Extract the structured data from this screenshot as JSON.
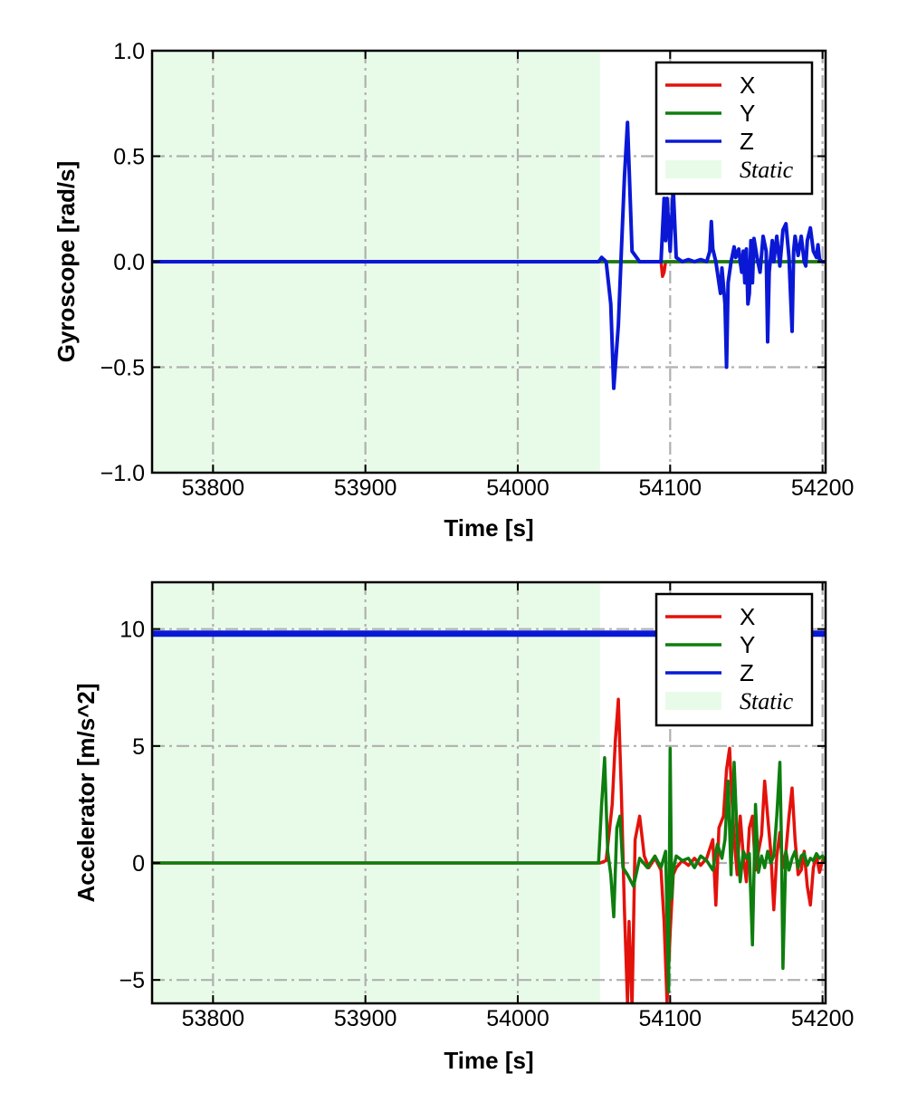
{
  "chart_data": [
    {
      "type": "line",
      "xlabel": "Time [s]",
      "ylabel": "Gyroscope [rad/s]",
      "xlim": [
        53760,
        54202
      ],
      "ylim": [
        -1.0,
        1.0
      ],
      "xticks": [
        53800,
        53900,
        54000,
        54100,
        54200
      ],
      "xtick_labels": [
        "53800",
        "53900",
        "54000",
        "54100",
        "54200"
      ],
      "yticks": [
        -1.0,
        -0.5,
        0.0,
        0.5,
        1.0
      ],
      "ytick_labels": [
        "−1.0",
        "−0.5",
        "0.0",
        "0.5",
        "1.0"
      ],
      "grid": true,
      "legend_position": "top-right",
      "static_region": {
        "label": "Static",
        "x": [
          53760,
          54054
        ],
        "color": "#e8fbe8"
      },
      "series": [
        {
          "name": "X",
          "color": "#e3120b",
          "x": [
            53760,
            54054,
            54094,
            54095,
            54096,
            54097,
            54202
          ],
          "values": [
            0,
            0,
            0,
            -0.07,
            -0.05,
            0,
            0
          ]
        },
        {
          "name": "Y",
          "color": "#0e7e0e",
          "x": [
            53760,
            54202
          ],
          "values": [
            0,
            0
          ]
        },
        {
          "name": "Z",
          "color": "#0a18d6",
          "x": [
            53760,
            54053,
            54055,
            54058,
            54061,
            54063,
            54066,
            54068,
            54070,
            54072,
            54075,
            54080,
            54094,
            54096,
            54097,
            54098,
            54100,
            54102,
            54104,
            54108,
            54112,
            54116,
            54120,
            54124,
            54126,
            54127,
            54128,
            54130,
            54132,
            54133,
            54134,
            54136,
            54137,
            54138,
            54140,
            54142,
            54143,
            54145,
            54146,
            54147,
            54148,
            54149,
            54150,
            54151,
            54152,
            54153,
            54154,
            54155,
            54157,
            54159,
            54161,
            54163,
            54164,
            54165,
            54167,
            54168,
            54170,
            54172,
            54174,
            54176,
            54178,
            54180,
            54181,
            54182,
            54184,
            54186,
            54188,
            54189,
            54190,
            54192,
            54194,
            54196,
            54197,
            54198,
            54200,
            54202
          ],
          "values": [
            0,
            0,
            0.02,
            0,
            -0.2,
            -0.6,
            -0.3,
            0.05,
            0.4,
            0.66,
            0.05,
            0,
            0,
            0.3,
            0.1,
            0.3,
            0.05,
            0.35,
            0.02,
            0,
            0.01,
            0,
            0.01,
            0,
            0.05,
            0.19,
            0.06,
            0,
            -0.1,
            -0.15,
            -0.03,
            -0.2,
            -0.5,
            -0.1,
            0,
            0.07,
            0.02,
            0.06,
            0,
            -0.05,
            0.05,
            -0.1,
            0.06,
            -0.2,
            -0.15,
            0.1,
            -0.1,
            0.11,
            0.02,
            -0.05,
            0.12,
            0.05,
            -0.38,
            -0.05,
            0.1,
            0,
            0.12,
            -0.02,
            0.15,
            0.18,
            0.02,
            -0.33,
            0.05,
            0.12,
            0.03,
            0.12,
            0,
            -0.02,
            0.1,
            0.16,
            0.05,
            0.02,
            0.08,
            0.01,
            0,
            0
          ]
        }
      ]
    },
    {
      "type": "line",
      "xlabel": "Time [s]",
      "ylabel": "Accelerator [m/s^2]",
      "xlim": [
        53760,
        54202
      ],
      "ylim": [
        -6,
        12
      ],
      "xticks": [
        53800,
        53900,
        54000,
        54100,
        54200
      ],
      "xtick_labels": [
        "53800",
        "53900",
        "54000",
        "54100",
        "54200"
      ],
      "yticks": [
        -5,
        0,
        5,
        10
      ],
      "ytick_labels": [
        "−5",
        "0",
        "5",
        "10"
      ],
      "grid": true,
      "legend_position": "top-right",
      "static_region": {
        "label": "Static",
        "x": [
          53760,
          54054
        ],
        "color": "#e8fbe8"
      },
      "series": [
        {
          "name": "X",
          "color": "#e3120b",
          "x": [
            53760,
            54054,
            54058,
            54062,
            54064,
            54066,
            54068,
            54070,
            54072,
            54073,
            54075,
            54077,
            54080,
            54083,
            54086,
            54090,
            54094,
            54096,
            54098,
            54100,
            54102,
            54104,
            54108,
            54112,
            54116,
            54120,
            54124,
            54128,
            54130,
            54132,
            54135,
            54137,
            54139,
            54140,
            54142,
            54144,
            54146,
            54148,
            54150,
            54152,
            54154,
            54156,
            54158,
            54160,
            54162,
            54164,
            54166,
            54168,
            54170,
            54172,
            54174,
            54176,
            54178,
            54180,
            54182,
            54184,
            54186,
            54188,
            54190,
            54192,
            54194,
            54196,
            54198,
            54200,
            54202
          ],
          "values": [
            0,
            0,
            0.1,
            2.5,
            5.2,
            7.0,
            3.0,
            -2.0,
            -6.0,
            -2.5,
            -6.2,
            1.0,
            2.0,
            0.3,
            -0.2,
            0.2,
            -0.3,
            -2.5,
            -6.0,
            -3.0,
            -0.5,
            -0.2,
            0.1,
            -0.1,
            0.2,
            -0.1,
            0.2,
            1.0,
            -1.8,
            1.5,
            2.0,
            4.0,
            4.9,
            3.5,
            1.0,
            -0.5,
            2.0,
            0.3,
            -0.8,
            1.5,
            2.0,
            -0.3,
            0.5,
            1.2,
            3.5,
            2.0,
            0.5,
            -2.0,
            0.3,
            1.3,
            -0.2,
            0.5,
            2.0,
            3.2,
            1.0,
            -0.5,
            -0.3,
            0.5,
            -1.0,
            -1.8,
            -0.2,
            0.3,
            -0.4,
            0.1,
            0
          ]
        },
        {
          "name": "Y",
          "color": "#0e7e0e",
          "x": [
            53760,
            54053,
            54055,
            54057,
            54059,
            54061,
            54063,
            54065,
            54067,
            54069,
            54072,
            54076,
            54080,
            54085,
            54090,
            54094,
            54097,
            54099,
            54100,
            54101,
            54102,
            54104,
            54108,
            54112,
            54116,
            54120,
            54124,
            54128,
            54131,
            54134,
            54136,
            54138,
            54140,
            54142,
            54144,
            54146,
            54148,
            54150,
            54152,
            54154,
            54156,
            54158,
            54160,
            54162,
            54164,
            54166,
            54168,
            54170,
            54172,
            54173,
            54174,
            54176,
            54178,
            54180,
            54182,
            54184,
            54186,
            54188,
            54190,
            54192,
            54194,
            54196,
            54198,
            54200,
            54202
          ],
          "values": [
            0,
            0,
            2.5,
            4.5,
            0.5,
            -0.5,
            -2.3,
            1.5,
            2.0,
            -0.2,
            -0.5,
            -1.0,
            0.2,
            -0.2,
            0.3,
            -0.2,
            0.5,
            -5.5,
            4.9,
            -1.5,
            -0.3,
            0.3,
            0.1,
            0.2,
            -0.2,
            0.3,
            0.1,
            -0.3,
            0.8,
            0.2,
            1.0,
            3.5,
            -0.5,
            4.3,
            1.0,
            -0.8,
            0.5,
            0.2,
            0.4,
            -3.5,
            2.5,
            -0.4,
            0.3,
            -0.2,
            0.5,
            0,
            0.3,
            2.0,
            4.3,
            1.0,
            -4.5,
            0.5,
            -0.3,
            0.2,
            0.5,
            -0.2,
            0.3,
            0.4,
            -0.1,
            0.2,
            0.1,
            0.4,
            0.2,
            0.3,
            0
          ]
        },
        {
          "name": "Z",
          "color": "#0a18d6",
          "x": [
            53760,
            54202
          ],
          "values": [
            9.8,
            9.8
          ]
        }
      ]
    }
  ]
}
